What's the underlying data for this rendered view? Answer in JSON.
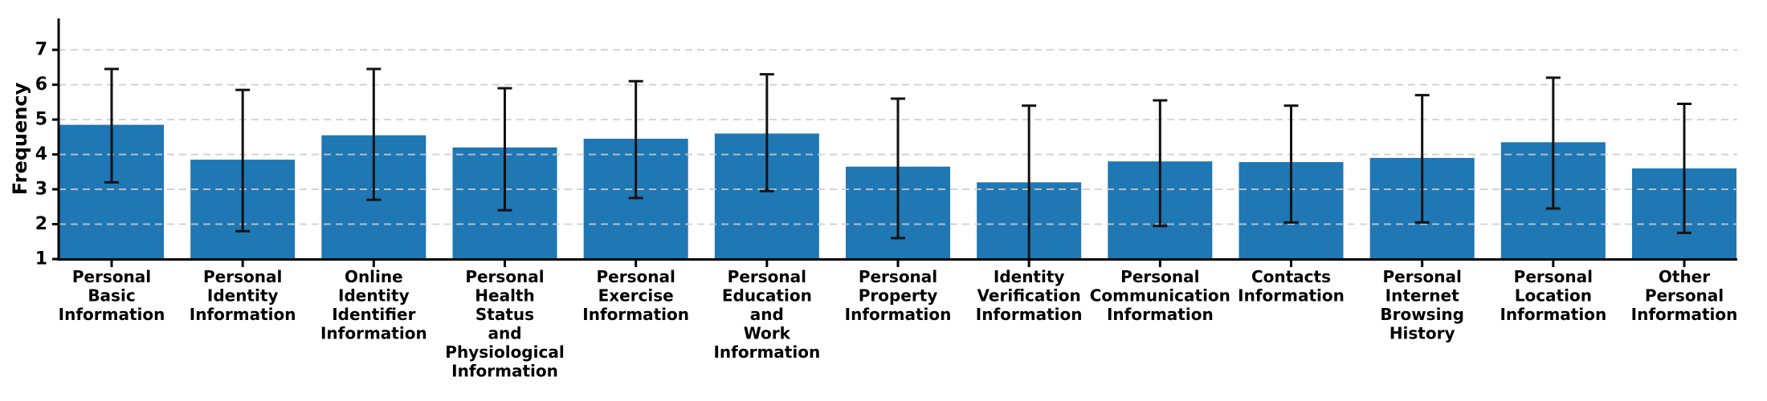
{
  "chart_data": {
    "type": "bar",
    "title": "",
    "xlabel": "",
    "ylabel": "Frequency",
    "ylim": [
      1,
      7.9
    ],
    "yticks": [
      1,
      2,
      3,
      4,
      5,
      6,
      7
    ],
    "grid": "horizontal-dashed",
    "legend": "none",
    "bar_color": "#1f77b4",
    "error_color": "#111111",
    "axis_color": "#000000",
    "grid_color": "#cccccc",
    "categories": [
      [
        "Personal",
        "Basic",
        "Information"
      ],
      [
        "Personal",
        "Identity",
        "Information"
      ],
      [
        "Online",
        "Identity",
        "Identifier",
        "Information"
      ],
      [
        "Personal",
        "Health",
        "Status",
        "and",
        "Physiological",
        "Information"
      ],
      [
        "Personal",
        "Exercise",
        "Information"
      ],
      [
        "Personal",
        "Education",
        "and",
        "Work",
        "Information"
      ],
      [
        "Personal",
        "Property",
        "Information"
      ],
      [
        "Identity",
        "Verification",
        "Information"
      ],
      [
        "Personal",
        "Communication",
        "Information"
      ],
      [
        "Contacts",
        "Information"
      ],
      [
        "Personal",
        "Internet",
        "Browsing",
        "History"
      ],
      [
        "Personal",
        "Location",
        "Information"
      ],
      [
        "Other",
        "Personal",
        "Information"
      ]
    ],
    "values": [
      4.85,
      3.85,
      4.55,
      4.2,
      4.45,
      4.6,
      3.65,
      3.2,
      3.8,
      3.78,
      3.9,
      4.35,
      3.6
    ],
    "error_low": [
      3.2,
      1.8,
      2.7,
      2.4,
      2.75,
      2.95,
      1.6,
      1.0,
      1.95,
      2.05,
      2.05,
      2.45,
      1.75
    ],
    "error_high": [
      6.45,
      5.85,
      6.45,
      5.9,
      6.1,
      6.3,
      5.6,
      5.4,
      5.55,
      5.4,
      5.7,
      6.2,
      5.45
    ]
  }
}
